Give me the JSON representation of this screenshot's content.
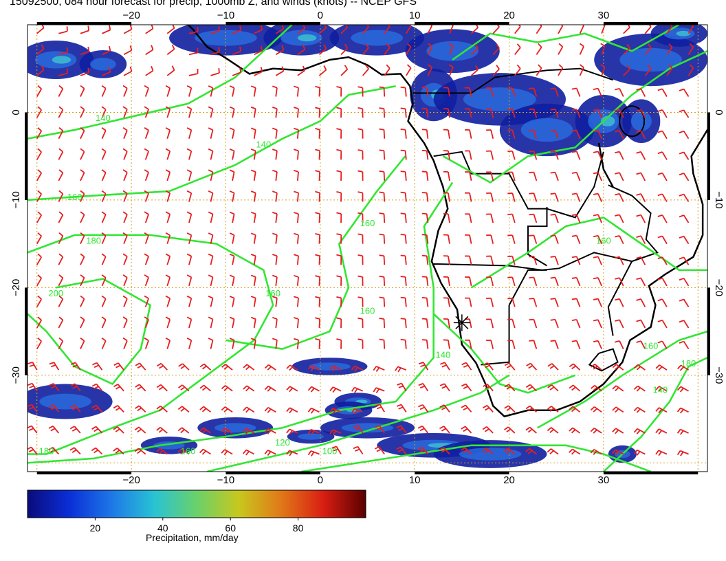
{
  "title": "15092500, 084 hour forecast for precip, 1000mb Z, and winds (knots) -- NCEP GFS",
  "axes": {
    "x_ticks": [
      {
        "value": -20,
        "label": "−20"
      },
      {
        "value": -10,
        "label": "−10"
      },
      {
        "value": 0,
        "label": "0"
      },
      {
        "value": 10,
        "label": "10"
      },
      {
        "value": 20,
        "label": "20"
      },
      {
        "value": 30,
        "label": "30"
      }
    ],
    "y_ticks": [
      {
        "value": 0,
        "label": "0"
      },
      {
        "value": -10,
        "label": "−10"
      },
      {
        "value": -20,
        "label": "−20"
      },
      {
        "value": -30,
        "label": "−30"
      }
    ],
    "lon_range": [
      -31,
      41
    ],
    "lat_range": [
      -41,
      10
    ]
  },
  "contour_labels": [
    {
      "text": "140",
      "lon": -23,
      "lat": -1
    },
    {
      "text": "140",
      "lon": -6,
      "lat": -4
    },
    {
      "text": "160",
      "lon": -26,
      "lat": -10
    },
    {
      "text": "180",
      "lon": -24,
      "lat": -15
    },
    {
      "text": "200",
      "lon": -28,
      "lat": -21
    },
    {
      "text": "160",
      "lon": 5,
      "lat": -13
    },
    {
      "text": "160",
      "lon": -5,
      "lat": -21
    },
    {
      "text": "160",
      "lon": 5,
      "lat": -23
    },
    {
      "text": "140",
      "lon": 13,
      "lat": -28
    },
    {
      "text": "180",
      "lon": -29,
      "lat": -39
    },
    {
      "text": "160",
      "lon": -14,
      "lat": -39
    },
    {
      "text": "120",
      "lon": -4,
      "lat": -38
    },
    {
      "text": "100",
      "lon": 1,
      "lat": -39
    },
    {
      "text": "160",
      "lon": 30,
      "lat": -15
    },
    {
      "text": "160",
      "lon": 35,
      "lat": -27
    },
    {
      "text": "180",
      "lon": 39,
      "lat": -29
    },
    {
      "text": "140",
      "lon": 36,
      "lat": -32
    }
  ],
  "colorbar": {
    "label": "Precipitation, mm/day",
    "range": [
      0,
      100
    ],
    "ticks": [
      {
        "value": 20,
        "label": "20"
      },
      {
        "value": 40,
        "label": "40"
      },
      {
        "value": 60,
        "label": "60"
      },
      {
        "value": 80,
        "label": "80"
      }
    ],
    "stops": [
      "#0b0b7a",
      "#0a2fd8",
      "#1e78e6",
      "#28c3d4",
      "#6ad06a",
      "#c8c81e",
      "#e07818",
      "#d81e12",
      "#5a0000"
    ]
  },
  "colors": {
    "contour": "#32e632",
    "barbs": "#e61e1e",
    "grid": "#d8a020",
    "coast": "#000000"
  },
  "marker": {
    "lon": 15,
    "lat": -24
  }
}
